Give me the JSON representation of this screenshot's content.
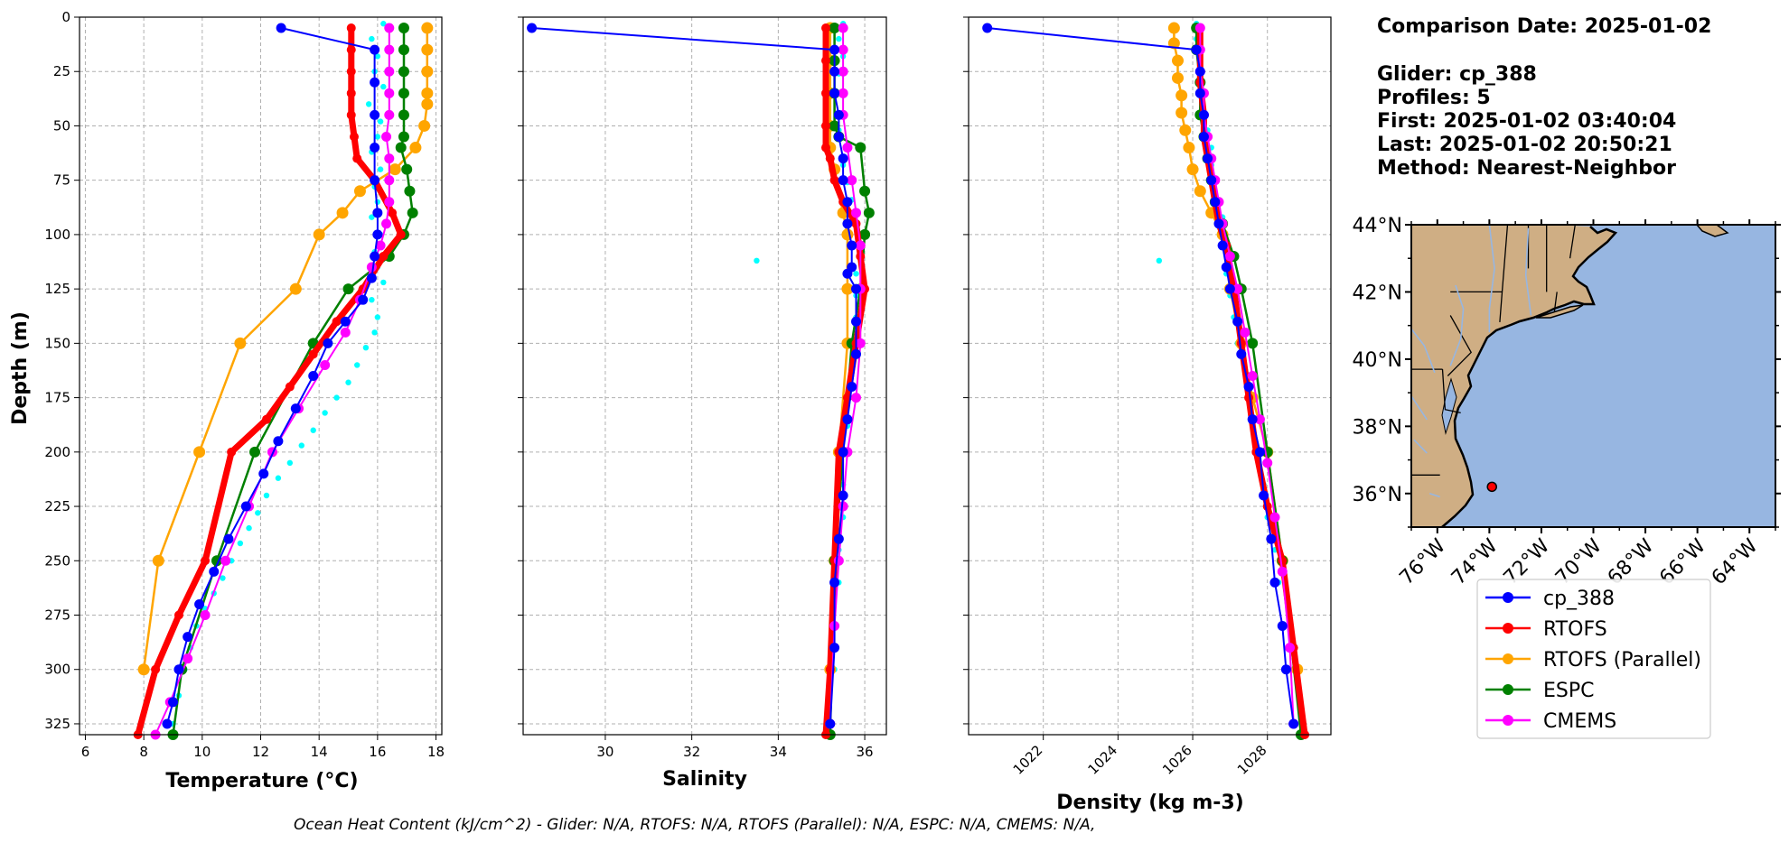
{
  "info": {
    "comparison": "Comparison Date: 2025-01-02",
    "glider": "Glider: cp_388",
    "profiles": "Profiles: 5",
    "first": "First: 2025-01-02 03:40:04",
    "last": "Last: 2025-01-02 20:50:21",
    "method": "Method: Nearest-Neighbor"
  },
  "footer": "Ocean Heat Content (kJ/cm^2) - Glider: N/A,  RTOFS: N/A,  RTOFS (Parallel): N/A,  ESPC: N/A,  CMEMS: N/A,",
  "colors": {
    "glider": "#0000ff",
    "glider_points": "#00ffff",
    "rtofs": "#ff0000",
    "rtofs_parallel": "#ffa500",
    "espc": "#008000",
    "cmems": "#ff00ff",
    "ocean": "#97b6e1",
    "land": "#cfae84"
  },
  "map": {
    "lat_labels": [
      "44°N",
      "42°N",
      "40°N",
      "38°N",
      "36°N"
    ],
    "lon_labels": [
      "76°W",
      "74°W",
      "72°W",
      "70°W",
      "68°W",
      "66°W",
      "64°W"
    ],
    "glider_marker": {
      "lon": -73.9,
      "lat": 36.2
    }
  },
  "legend": [
    "cp_388",
    "RTOFS",
    "RTOFS (Parallel)",
    "ESPC",
    "CMEMS"
  ],
  "chart_data": [
    {
      "type": "line",
      "xlabel": "Temperature (°C)",
      "ylabel": "Depth (m)",
      "xlim": [
        5.8,
        18.2
      ],
      "ylim": [
        330,
        0
      ],
      "xticks": [
        6,
        8,
        10,
        12,
        14,
        16,
        18
      ],
      "yticks": [
        0,
        25,
        50,
        75,
        100,
        125,
        150,
        175,
        200,
        225,
        250,
        275,
        300,
        325
      ],
      "grid": true,
      "glider_points": {
        "x": [
          16.2,
          15.8,
          16.0,
          15.9,
          16.2,
          15.7,
          16.1,
          16.0,
          15.8,
          16.1,
          15.9,
          16.0,
          15.8,
          16.1,
          15.9,
          16.0,
          16.2,
          15.8,
          16.0,
          15.9,
          15.6,
          15.3,
          15.0,
          14.6,
          14.2,
          13.8,
          13.4,
          13.0,
          12.6,
          12.2,
          11.9,
          11.6,
          11.3,
          11.0,
          10.7,
          10.4,
          10.1,
          9.8,
          9.6,
          9.4,
          9.2,
          9.0
        ],
        "y": [
          3,
          10,
          18,
          25,
          32,
          40,
          48,
          55,
          62,
          70,
          78,
          85,
          92,
          100,
          108,
          115,
          122,
          130,
          138,
          145,
          152,
          160,
          168,
          175,
          182,
          190,
          197,
          205,
          212,
          220,
          228,
          235,
          242,
          250,
          258,
          265,
          272,
          280,
          290,
          300,
          312,
          325
        ]
      },
      "series": [
        {
          "name": "cp_388",
          "x": [
            12.7,
            15.9,
            15.9,
            15.9,
            15.9,
            15.9,
            16.0,
            16.0,
            15.9,
            15.8,
            15.5,
            14.9,
            14.3,
            13.8,
            13.2,
            12.6,
            12.1,
            11.5,
            10.9,
            10.4,
            9.9,
            9.5,
            9.2,
            9.0,
            8.8
          ],
          "y": [
            5,
            15,
            30,
            45,
            60,
            75,
            90,
            100,
            110,
            120,
            130,
            140,
            150,
            165,
            180,
            195,
            210,
            225,
            240,
            255,
            270,
            285,
            300,
            315,
            325
          ]
        },
        {
          "name": "RTOFS",
          "x": [
            15.1,
            15.1,
            15.1,
            15.1,
            15.1,
            15.2,
            15.3,
            15.9,
            16.5,
            16.8,
            16.2,
            15.5,
            14.6,
            13.8,
            13.0,
            12.2,
            11.0,
            10.1,
            9.2,
            8.4,
            7.8
          ],
          "y": [
            5,
            15,
            25,
            35,
            45,
            55,
            65,
            75,
            90,
            100,
            110,
            125,
            140,
            155,
            170,
            185,
            200,
            250,
            275,
            300,
            330
          ]
        },
        {
          "name": "RTOFS (Parallel)",
          "x": [
            17.7,
            17.7,
            17.7,
            17.7,
            17.7,
            17.6,
            17.3,
            16.6,
            15.4,
            14.8,
            14.0,
            13.2,
            11.3,
            9.9,
            8.5,
            8.0
          ],
          "y": [
            5,
            15,
            25,
            35,
            40,
            50,
            60,
            70,
            80,
            90,
            100,
            125,
            150,
            200,
            250,
            300
          ]
        },
        {
          "name": "ESPC",
          "x": [
            16.9,
            16.9,
            16.9,
            16.9,
            16.9,
            16.9,
            16.8,
            17.0,
            17.1,
            17.2,
            16.9,
            16.4,
            15.0,
            13.8,
            11.8,
            10.5,
            9.3,
            9.0
          ],
          "y": [
            5,
            15,
            25,
            35,
            45,
            55,
            60,
            70,
            80,
            90,
            100,
            110,
            125,
            150,
            200,
            250,
            300,
            330
          ]
        },
        {
          "name": "CMEMS",
          "x": [
            16.4,
            16.4,
            16.4,
            16.4,
            16.4,
            16.3,
            16.4,
            16.4,
            16.4,
            16.3,
            16.1,
            15.8,
            15.4,
            14.9,
            14.2,
            13.3,
            12.4,
            11.6,
            10.8,
            10.1,
            9.5,
            8.9,
            8.4
          ],
          "y": [
            5,
            15,
            25,
            35,
            45,
            55,
            65,
            75,
            85,
            95,
            105,
            115,
            130,
            145,
            160,
            180,
            200,
            225,
            250,
            275,
            295,
            315,
            330
          ]
        }
      ]
    },
    {
      "type": "line",
      "xlabel": "Salinity",
      "ylabel": "",
      "xlim": [
        28.1,
        36.5
      ],
      "ylim": [
        330,
        0
      ],
      "xticks": [
        30,
        32,
        34,
        36
      ],
      "yticks": [
        0,
        25,
        50,
        75,
        100,
        125,
        150,
        175,
        200,
        225,
        250,
        275,
        300,
        325
      ],
      "grid": true,
      "glider_points": {
        "x": [
          35.5,
          35.4,
          35.5,
          35.4,
          35.5,
          35.5,
          35.4,
          35.6,
          35.5,
          35.6,
          35.7,
          35.7,
          33.5,
          35.8,
          35.8,
          35.8,
          35.7,
          35.7,
          35.6,
          35.6,
          35.5,
          35.5,
          35.5,
          35.4,
          35.4,
          35.3,
          35.3,
          35.2
        ],
        "y": [
          3,
          10,
          18,
          26,
          35,
          44,
          52,
          60,
          68,
          76,
          84,
          92,
          112,
          118,
          128,
          138,
          150,
          162,
          175,
          188,
          200,
          215,
          230,
          245,
          260,
          280,
          300,
          325
        ]
      },
      "series": [
        {
          "name": "cp_388",
          "x": [
            28.3,
            35.3,
            35.3,
            35.3,
            35.4,
            35.4,
            35.5,
            35.5,
            35.6,
            35.6,
            35.7,
            35.7,
            35.6,
            35.8,
            35.8,
            35.8,
            35.7,
            35.6,
            35.5,
            35.5,
            35.4,
            35.3,
            35.3,
            35.2
          ],
          "y": [
            5,
            15,
            25,
            35,
            45,
            55,
            65,
            75,
            85,
            95,
            105,
            115,
            118,
            125,
            140,
            155,
            170,
            185,
            200,
            220,
            240,
            260,
            290,
            325
          ]
        },
        {
          "name": "RTOFS",
          "x": [
            35.1,
            35.1,
            35.1,
            35.1,
            35.1,
            35.2,
            35.3,
            35.5,
            35.8,
            35.9,
            36.0,
            35.8,
            35.6,
            35.4,
            35.3,
            35.2,
            35.1
          ],
          "y": [
            5,
            20,
            35,
            50,
            60,
            65,
            75,
            85,
            95,
            110,
            125,
            150,
            175,
            200,
            250,
            300,
            330
          ]
        },
        {
          "name": "RTOFS (Parallel)",
          "x": [
            35.2,
            35.2,
            35.2,
            35.2,
            35.2,
            35.3,
            35.5,
            35.6,
            35.6,
            35.6,
            35.4,
            35.3,
            35.2
          ],
          "y": [
            5,
            20,
            35,
            50,
            60,
            70,
            90,
            100,
            125,
            150,
            200,
            250,
            300
          ]
        },
        {
          "name": "ESPC",
          "x": [
            35.3,
            35.3,
            35.3,
            35.3,
            35.4,
            35.9,
            36.0,
            36.1,
            36.0,
            35.9,
            35.7,
            35.5,
            35.3,
            35.2
          ],
          "y": [
            5,
            20,
            35,
            50,
            55,
            60,
            80,
            90,
            100,
            125,
            150,
            200,
            250,
            330
          ]
        },
        {
          "name": "CMEMS",
          "x": [
            35.5,
            35.5,
            35.5,
            35.5,
            35.5,
            35.6,
            35.7,
            35.8,
            35.9,
            35.9,
            35.9,
            35.8,
            35.6,
            35.5,
            35.4,
            35.3,
            35.2
          ],
          "y": [
            5,
            15,
            25,
            35,
            45,
            60,
            75,
            90,
            105,
            125,
            150,
            175,
            200,
            225,
            250,
            280,
            325
          ]
        }
      ]
    },
    {
      "type": "line",
      "xlabel": "Density (kg m-3)",
      "ylabel": "",
      "xlim": [
        1020.0,
        1029.7
      ],
      "ylim": [
        330,
        0
      ],
      "xticks": [
        1022,
        1024,
        1026,
        1028
      ],
      "yticks": [
        0,
        25,
        50,
        75,
        100,
        125,
        150,
        175,
        200,
        225,
        250,
        275,
        300,
        325
      ],
      "grid": true,
      "glider_points": {
        "x": [
          1026.1,
          1026.1,
          1026.2,
          1026.2,
          1026.3,
          1026.3,
          1026.4,
          1026.5,
          1026.5,
          1026.6,
          1026.7,
          1026.8,
          1025.1,
          1026.9,
          1027.0,
          1027.1,
          1027.2,
          1027.4,
          1027.5,
          1027.6,
          1027.8,
          1027.9,
          1028.0,
          1028.2,
          1028.3,
          1028.4,
          1028.6,
          1028.7
        ],
        "y": [
          3,
          10,
          18,
          26,
          35,
          44,
          52,
          60,
          68,
          76,
          84,
          92,
          112,
          118,
          128,
          138,
          150,
          162,
          175,
          188,
          200,
          215,
          230,
          245,
          260,
          280,
          300,
          325
        ]
      },
      "series": [
        {
          "name": "cp_388",
          "x": [
            1020.5,
            1026.1,
            1026.2,
            1026.2,
            1026.3,
            1026.3,
            1026.4,
            1026.5,
            1026.6,
            1026.7,
            1026.8,
            1026.9,
            1027.0,
            1027.2,
            1027.3,
            1027.5,
            1027.6,
            1027.8,
            1027.9,
            1028.1,
            1028.2,
            1028.4,
            1028.5,
            1028.7
          ],
          "y": [
            5,
            15,
            25,
            35,
            45,
            55,
            65,
            75,
            85,
            95,
            105,
            115,
            125,
            140,
            155,
            170,
            185,
            200,
            220,
            240,
            260,
            280,
            300,
            325
          ]
        },
        {
          "name": "RTOFS",
          "x": [
            1026.2,
            1026.2,
            1026.2,
            1026.3,
            1026.3,
            1026.4,
            1026.5,
            1026.6,
            1026.7,
            1026.9,
            1027.1,
            1027.3,
            1027.5,
            1027.7,
            1028.0,
            1028.4,
            1028.7,
            1029.0
          ],
          "y": [
            5,
            15,
            30,
            45,
            55,
            65,
            75,
            85,
            95,
            105,
            125,
            150,
            175,
            200,
            225,
            250,
            290,
            330
          ]
        },
        {
          "name": "RTOFS (Parallel)",
          "x": [
            1025.5,
            1025.5,
            1025.6,
            1025.6,
            1025.7,
            1025.7,
            1025.8,
            1025.9,
            1026.0,
            1026.2,
            1026.5,
            1026.8,
            1027.0,
            1027.3,
            1027.6,
            1028.0,
            1028.4,
            1028.8
          ],
          "y": [
            5,
            12,
            20,
            28,
            36,
            44,
            52,
            60,
            70,
            80,
            90,
            100,
            125,
            150,
            175,
            200,
            250,
            300
          ]
        },
        {
          "name": "ESPC",
          "x": [
            1026.1,
            1026.1,
            1026.2,
            1026.2,
            1026.3,
            1026.4,
            1026.5,
            1026.6,
            1026.8,
            1027.1,
            1027.3,
            1027.6,
            1028.0,
            1028.4,
            1028.9
          ],
          "y": [
            5,
            15,
            30,
            45,
            55,
            65,
            75,
            85,
            95,
            110,
            125,
            150,
            200,
            250,
            330
          ]
        },
        {
          "name": "CMEMS",
          "x": [
            1026.2,
            1026.2,
            1026.2,
            1026.3,
            1026.3,
            1026.4,
            1026.5,
            1026.6,
            1026.7,
            1026.8,
            1027.0,
            1027.2,
            1027.4,
            1027.6,
            1027.8,
            1028.0,
            1028.2,
            1028.4,
            1028.6,
            1028.7
          ],
          "y": [
            5,
            15,
            25,
            35,
            45,
            55,
            65,
            75,
            85,
            95,
            110,
            125,
            145,
            165,
            185,
            205,
            230,
            255,
            290,
            325
          ]
        }
      ]
    }
  ]
}
